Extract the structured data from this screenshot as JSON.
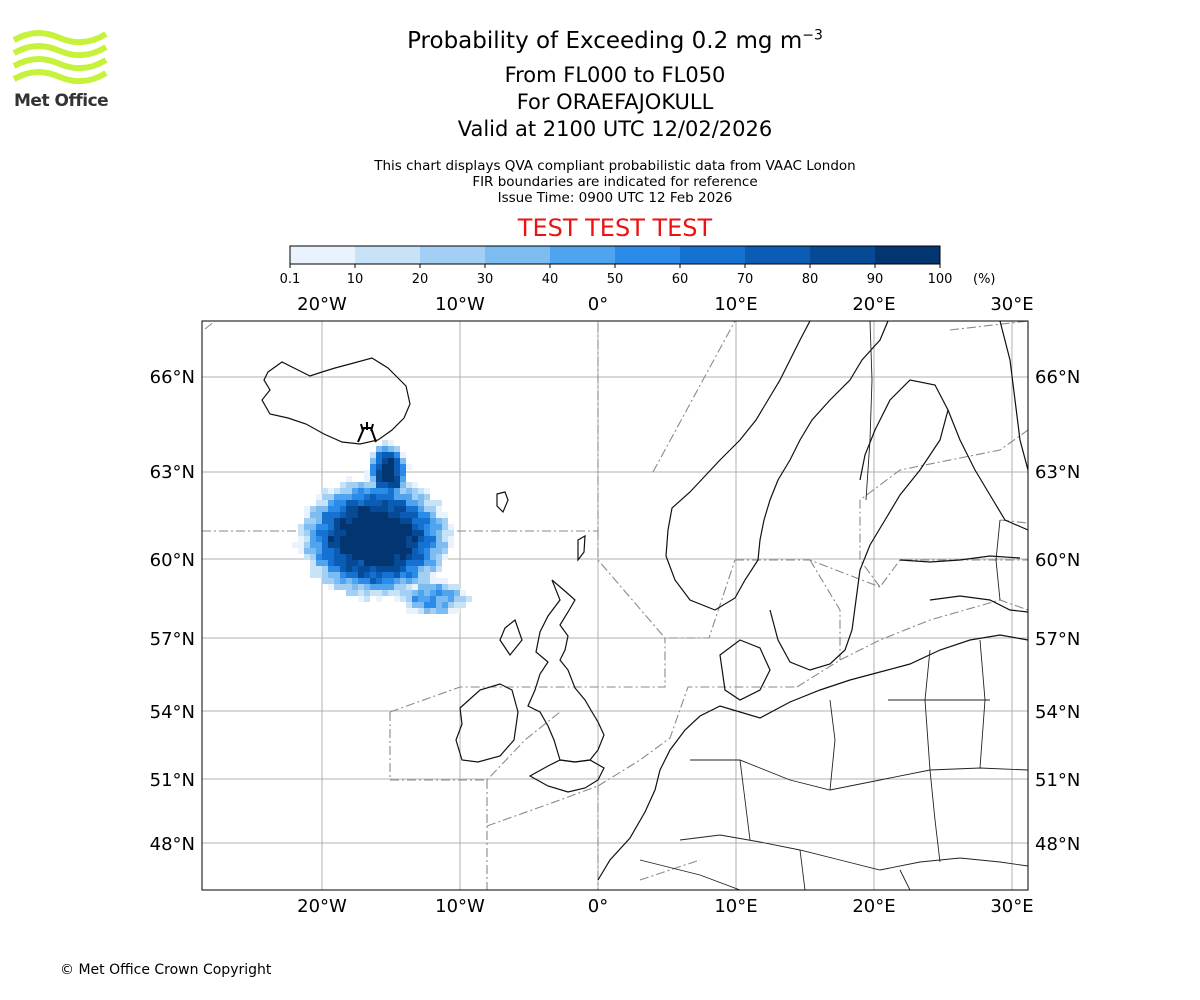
{
  "header": {
    "title_main": "Probability of Exceeding 0.2 mg m",
    "title_exp": "−3",
    "flight_levels": "From FL000 to FL050",
    "volcano": "For ORAEFAJOKULL",
    "valid": "Valid at 2100 UTC 12/02/2026",
    "note1": "This chart displays QVA compliant probabilistic data from VAAC London",
    "note2": "FIR boundaries are indicated for reference",
    "issue": "Issue Time: 0900 UTC 12 Feb 2026",
    "test_banner": "TEST TEST TEST"
  },
  "logo": {
    "text": "Met Office",
    "color": "#c6f23c"
  },
  "colorbar": {
    "ticks": [
      "0.1",
      "10",
      "20",
      "30",
      "40",
      "50",
      "60",
      "70",
      "80",
      "90",
      "100"
    ],
    "unit": "(%)",
    "colors": [
      "#e9f3fd",
      "#c8e2f8",
      "#a3cff5",
      "#7dbcf1",
      "#4ea4ef",
      "#2a8ce8",
      "#1672d1",
      "#0b5cb4",
      "#064a96",
      "#033670"
    ]
  },
  "map": {
    "lon_labels": [
      "20°W",
      "10°W",
      "0°",
      "10°E",
      "20°E",
      "30°E"
    ],
    "lat_labels": [
      "66°N",
      "63°N",
      "60°N",
      "57°N",
      "54°N",
      "51°N",
      "48°N"
    ],
    "volcano_marker": "volcano-symbol"
  },
  "footer": {
    "copyright": "© Met Office Crown Copyright"
  }
}
